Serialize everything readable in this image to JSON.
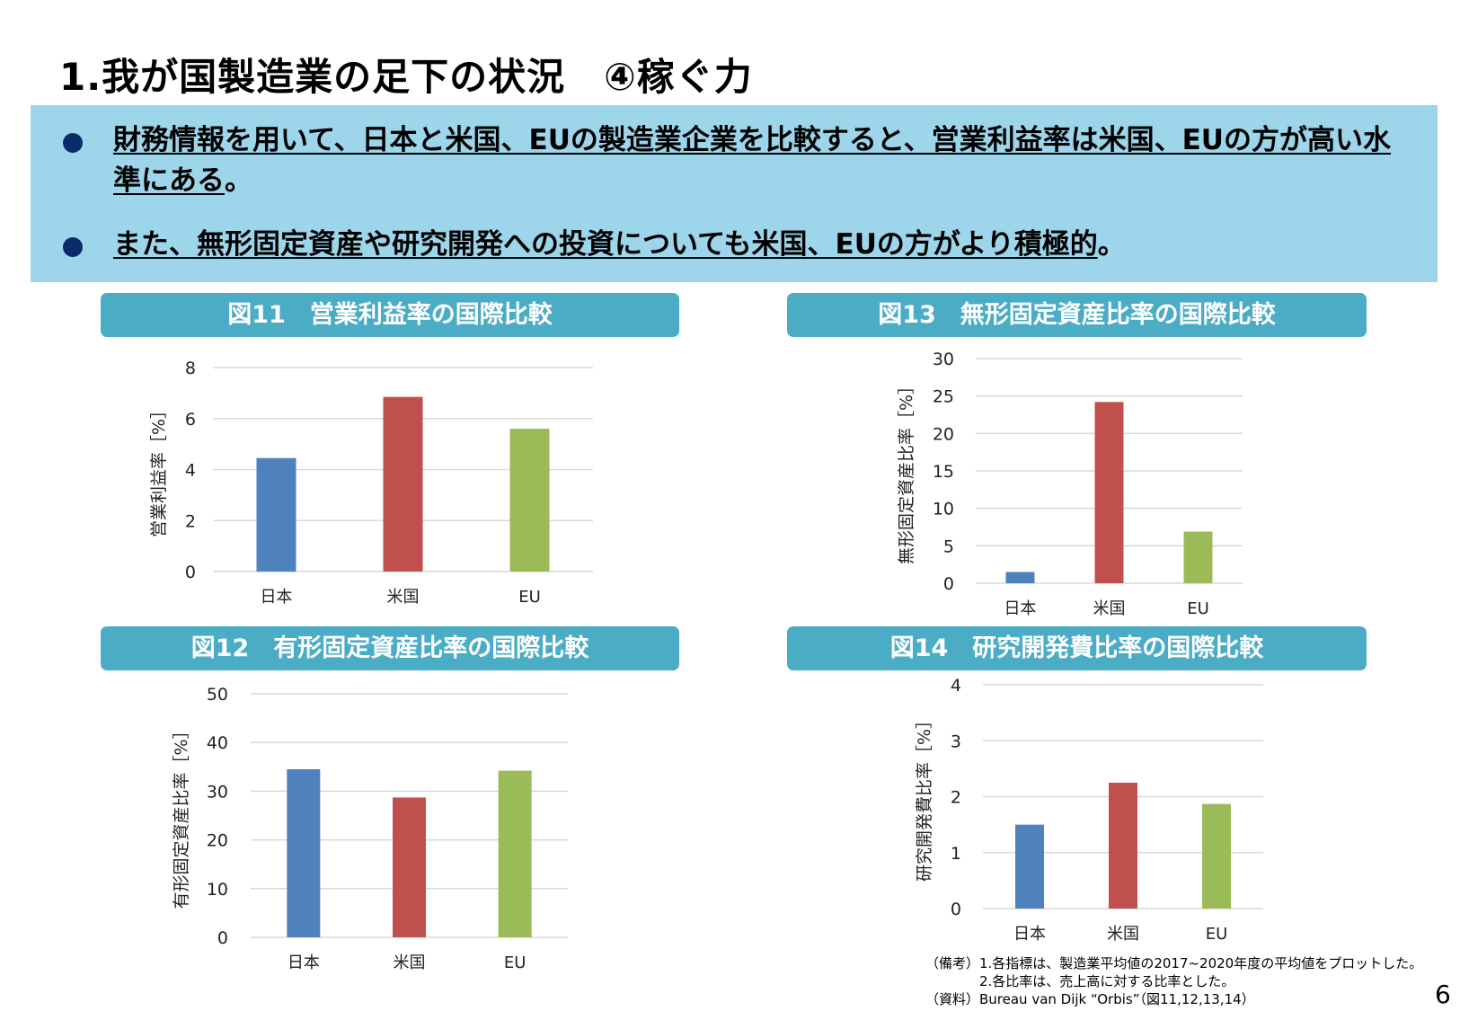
{
  "title": "1.我が国製造業の足下の状況　④稼ぐ力",
  "summary": {
    "bullets": [
      {
        "underlined": "財務情報を用いて、日本と米国、EUの製造業企業を比較すると、営業利益率は米国、EUの方が高い水準にある",
        "tail": "。"
      },
      {
        "underlined": "また、無形固定資産や研究開発への投資についても米国、EUの方がより積極的",
        "tail": "。"
      }
    ],
    "bullet_color": "#0b2a6b",
    "band_color": "#9dd5ea"
  },
  "chart_data": [
    {
      "type": "bar",
      "title": "図11　営業利益率の国際比較",
      "ylabel": "営業利益率［%］",
      "categories": [
        "日本",
        "米国",
        "EU"
      ],
      "values": [
        4.45,
        6.85,
        5.6
      ],
      "colors": [
        "#4f81bd",
        "#c0504d",
        "#9bbb59"
      ],
      "ylim": [
        0,
        8
      ],
      "yticks": [
        "0",
        "2",
        "4",
        "6",
        "8"
      ],
      "grid": true
    },
    {
      "type": "bar",
      "title": "図12　有形固定資産比率の国際比較",
      "ylabel": "有形固定資産比率［%］",
      "categories": [
        "日本",
        "米国",
        "EU"
      ],
      "values": [
        34.5,
        28.7,
        34.2
      ],
      "colors": [
        "#4f81bd",
        "#c0504d",
        "#9bbb59"
      ],
      "ylim": [
        0,
        50
      ],
      "yticks": [
        "0",
        "10",
        "20",
        "30",
        "40",
        "50"
      ],
      "grid": true
    },
    {
      "type": "bar",
      "title": "図13　無形固定資産比率の国際比較",
      "ylabel": "無形固定資産比率［%］",
      "categories": [
        "日本",
        "米国",
        "EU"
      ],
      "values": [
        1.5,
        24.2,
        6.9
      ],
      "colors": [
        "#4f81bd",
        "#c0504d",
        "#9bbb59"
      ],
      "ylim": [
        0,
        30
      ],
      "yticks": [
        "0",
        "5",
        "10",
        "15",
        "20",
        "25",
        "30"
      ],
      "grid": true
    },
    {
      "type": "bar",
      "title": "図14　研究開発費比率の国際比較",
      "ylabel": "研究開発費比率［%］",
      "categories": [
        "日本",
        "米国",
        "EU"
      ],
      "values": [
        1.5,
        2.25,
        1.87
      ],
      "colors": [
        "#4f81bd",
        "#c0504d",
        "#9bbb59"
      ],
      "ylim": [
        0,
        4
      ],
      "yticks": [
        "0",
        "1",
        "2",
        "3",
        "4"
      ],
      "grid": true
    }
  ],
  "header_color": "#4bacc6",
  "notes": {
    "line1": "（備考）1.各指標は、製造業平均値の2017~2020年度の平均値をプロットした。",
    "line2": "　　　　2.各比率は、売上高に対する比率とした。",
    "line3": "（資料）Bureau van Dijk “Orbis”（図11,12,13,14）"
  },
  "page_number": "6"
}
